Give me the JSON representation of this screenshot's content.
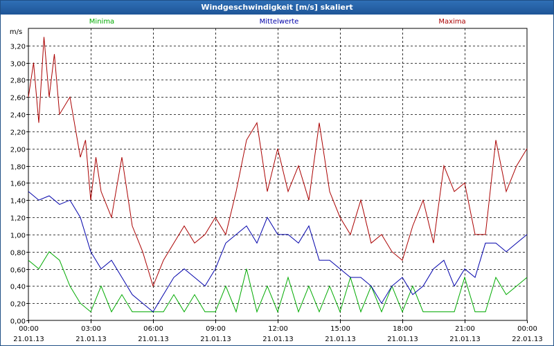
{
  "window": {
    "title": "Windgeschwindigkeit [m/s] skaliert"
  },
  "chart_data": {
    "type": "line",
    "title": "Windgeschwindigkeit [m/s] skaliert",
    "ylabel": "m/s",
    "ylim": [
      0,
      3.4
    ],
    "y_ticks": [
      "0,00",
      "0,20",
      "0,40",
      "0,60",
      "0,80",
      "1,00",
      "1,20",
      "1,40",
      "1,60",
      "1,80",
      "2,00",
      "2,20",
      "2,40",
      "2,60",
      "2,80",
      "3,00",
      "3,20"
    ],
    "x_ticks": [
      {
        "time": "00:00",
        "date": "21.01.13"
      },
      {
        "time": "03:00",
        "date": "21.01.13"
      },
      {
        "time": "06:00",
        "date": "21.01.13"
      },
      {
        "time": "09:00",
        "date": "21.01.13"
      },
      {
        "time": "12:00",
        "date": "21.01.13"
      },
      {
        "time": "15:00",
        "date": "21.01.13"
      },
      {
        "time": "18:00",
        "date": "21.01.13"
      },
      {
        "time": "21:00",
        "date": "21.01.13"
      },
      {
        "time": "00:00",
        "date": "22.01.13"
      }
    ],
    "x_range_hours": [
      0,
      24
    ],
    "grid": true,
    "legend_placement": "top",
    "series": [
      {
        "name": "Minima",
        "color": "#00aa00",
        "x": [
          0,
          0.5,
          1,
          1.5,
          2,
          2.5,
          3,
          3.5,
          4,
          4.5,
          5,
          5.5,
          6,
          6.5,
          7,
          7.5,
          8,
          8.5,
          9,
          9.5,
          10,
          10.5,
          11,
          11.5,
          12,
          12.5,
          13,
          13.5,
          14,
          14.5,
          15,
          15.5,
          16,
          16.5,
          17,
          17.5,
          18,
          18.5,
          19,
          19.5,
          20,
          20.5,
          21,
          21.5,
          22,
          22.5,
          23,
          23.5,
          24
        ],
        "values": [
          0.7,
          0.6,
          0.8,
          0.7,
          0.4,
          0.2,
          0.1,
          0.4,
          0.1,
          0.3,
          0.1,
          0.1,
          0.1,
          0.1,
          0.3,
          0.1,
          0.3,
          0.1,
          0.1,
          0.4,
          0.1,
          0.6,
          0.1,
          0.4,
          0.1,
          0.5,
          0.1,
          0.4,
          0.1,
          0.4,
          0.1,
          0.5,
          0.1,
          0.4,
          0.1,
          0.4,
          0.1,
          0.4,
          0.1,
          0.1,
          0.1,
          0.1,
          0.5,
          0.1,
          0.1,
          0.5,
          0.3,
          0.4,
          0.5
        ]
      },
      {
        "name": "Mittelwerte",
        "color": "#0000aa",
        "x": [
          0,
          0.5,
          1,
          1.5,
          2,
          2.5,
          3,
          3.5,
          4,
          4.5,
          5,
          5.5,
          6,
          6.5,
          7,
          7.5,
          8,
          8.5,
          9,
          9.5,
          10,
          10.5,
          11,
          11.5,
          12,
          12.5,
          13,
          13.5,
          14,
          14.5,
          15,
          15.5,
          16,
          16.5,
          17,
          17.5,
          18,
          18.5,
          19,
          19.5,
          20,
          20.5,
          21,
          21.5,
          22,
          22.5,
          23,
          23.5,
          24
        ],
        "values": [
          1.5,
          1.4,
          1.45,
          1.35,
          1.4,
          1.2,
          0.8,
          0.6,
          0.7,
          0.5,
          0.3,
          0.2,
          0.1,
          0.3,
          0.5,
          0.6,
          0.5,
          0.4,
          0.6,
          0.9,
          1.0,
          1.1,
          0.9,
          1.2,
          1.0,
          1.0,
          0.9,
          1.1,
          0.7,
          0.7,
          0.6,
          0.5,
          0.5,
          0.4,
          0.2,
          0.4,
          0.5,
          0.3,
          0.4,
          0.6,
          0.7,
          0.4,
          0.6,
          0.5,
          0.9,
          0.9,
          0.8,
          0.9,
          1.0
        ]
      },
      {
        "name": "Maxima",
        "color": "#aa0000",
        "x": [
          0,
          0.25,
          0.5,
          0.75,
          1,
          1.25,
          1.5,
          2,
          2.5,
          2.75,
          3,
          3.25,
          3.5,
          4,
          4.5,
          5,
          5.5,
          6,
          6.5,
          7,
          7.5,
          8,
          8.5,
          9,
          9.5,
          10,
          10.5,
          11,
          11.5,
          12,
          12.5,
          13,
          13.5,
          14,
          14.5,
          15,
          15.5,
          16,
          16.5,
          17,
          17.5,
          18,
          18.5,
          19,
          19.5,
          20,
          20.5,
          21,
          21.5,
          22,
          22.5,
          23,
          23.5,
          24
        ],
        "values": [
          2.6,
          3.0,
          2.3,
          3.3,
          2.6,
          3.1,
          2.4,
          2.6,
          1.9,
          2.1,
          1.4,
          1.9,
          1.5,
          1.2,
          1.9,
          1.1,
          0.8,
          0.4,
          0.7,
          0.9,
          1.1,
          0.9,
          1.0,
          1.2,
          1.0,
          1.5,
          2.1,
          2.3,
          1.5,
          2.0,
          1.5,
          1.8,
          1.4,
          2.3,
          1.5,
          1.2,
          1.0,
          1.4,
          0.9,
          1.0,
          0.8,
          0.7,
          1.1,
          1.4,
          0.9,
          1.8,
          1.5,
          1.6,
          1.0,
          1.0,
          2.1,
          1.5,
          1.8,
          2.0
        ]
      }
    ]
  }
}
